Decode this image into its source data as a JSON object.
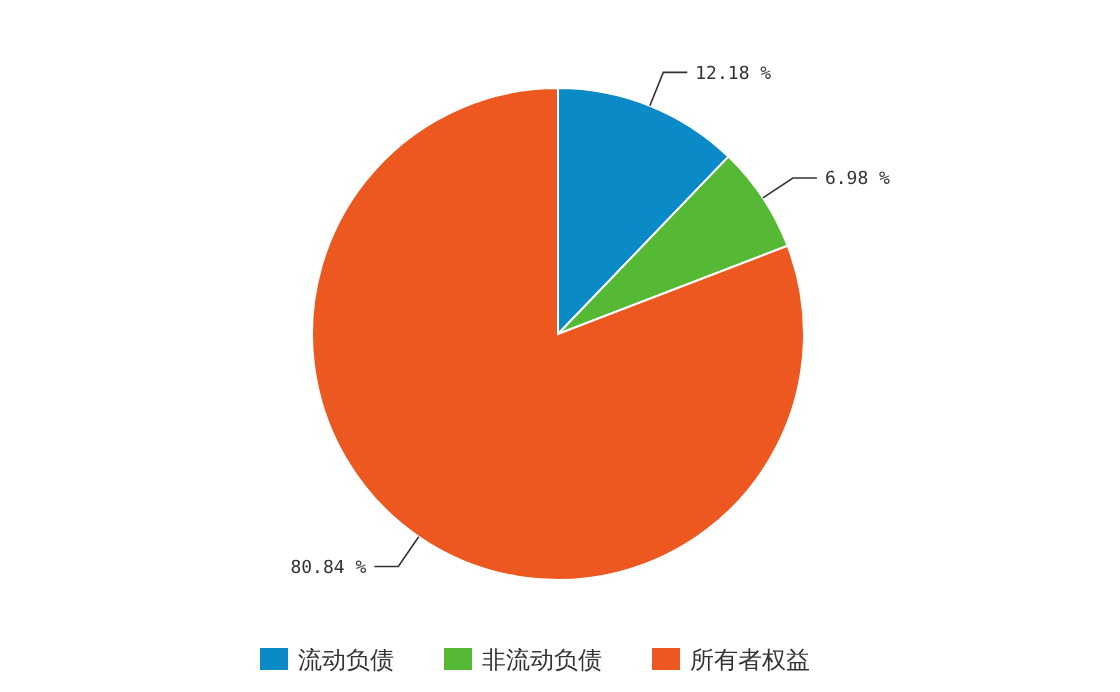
{
  "chart_data": {
    "type": "pie",
    "categories": [
      "流动负债",
      "非流动负债",
      "所有者权益"
    ],
    "values": [
      12.18,
      6.98,
      80.84
    ],
    "colors": [
      "#0b8ac8",
      "#55b935",
      "#ec581f"
    ],
    "value_labels": [
      "12.18 %",
      "6.98 %",
      "80.84 %"
    ],
    "legend": "bottom"
  }
}
